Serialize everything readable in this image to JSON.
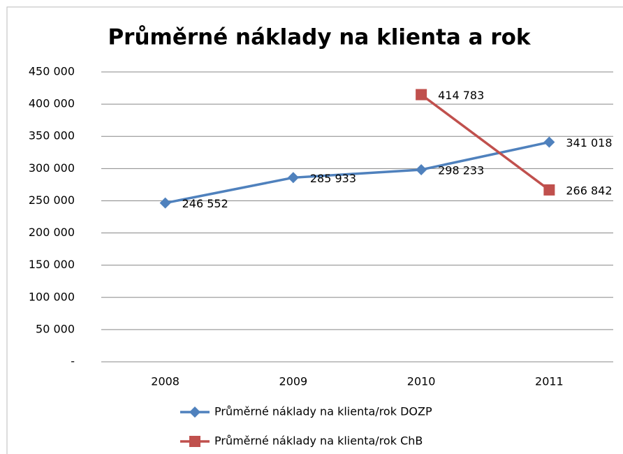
{
  "chart_data": {
    "type": "line",
    "title": "Průměrné náklady na klienta a rok",
    "categories": [
      "2008",
      "2009",
      "2010",
      "2011"
    ],
    "series": [
      {
        "name": "Průměrné náklady na klienta/rok DOZP",
        "color": "#4f81bd",
        "marker": "diamond",
        "values": [
          246552,
          285933,
          298233,
          341018
        ],
        "value_labels": [
          "246 552",
          "285 933",
          "298 233",
          "341 018"
        ]
      },
      {
        "name": "Průměrné náklady na klienta/rok ChB",
        "color": "#c0504d",
        "marker": "square",
        "values": [
          null,
          null,
          414783,
          266842
        ],
        "value_labels": [
          null,
          null,
          "414 783",
          "266 842"
        ]
      }
    ],
    "ylim": [
      0,
      450000
    ],
    "yticks": [
      {
        "value": 0,
        "label": "-"
      },
      {
        "value": 50000,
        "label": "50 000"
      },
      {
        "value": 100000,
        "label": "100 000"
      },
      {
        "value": 150000,
        "label": "150 000"
      },
      {
        "value": 200000,
        "label": "200 000"
      },
      {
        "value": 250000,
        "label": "250 000"
      },
      {
        "value": 300000,
        "label": "300 000"
      },
      {
        "value": 350000,
        "label": "350 000"
      },
      {
        "value": 400000,
        "label": "400 000"
      },
      {
        "value": 450000,
        "label": "450 000"
      }
    ],
    "grid": true,
    "legend": "bottom"
  }
}
